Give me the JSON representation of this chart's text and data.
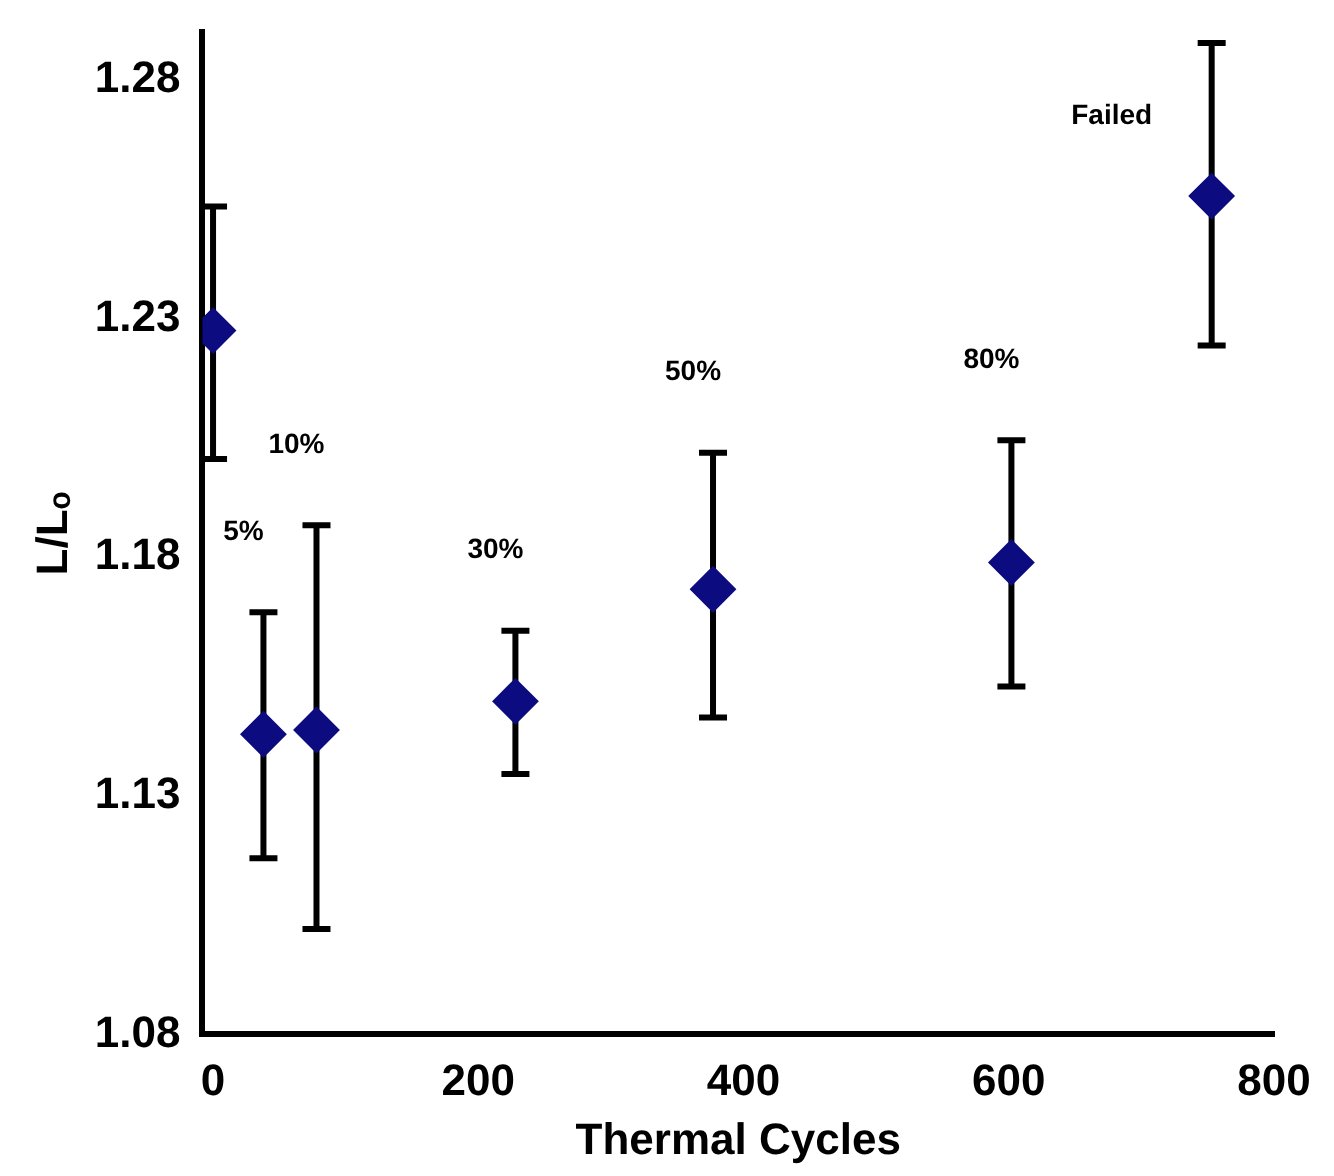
{
  "chart_data": {
    "type": "scatter",
    "xlabel": "Thermal Cycles",
    "ylabel": "L/Lₒ",
    "x": [
      0,
      38,
      78,
      228,
      377,
      602,
      753
    ],
    "series": [
      {
        "color": "#0c0c80",
        "values": [
          1.2275,
          1.1429,
          1.1438,
          1.1498,
          1.1733,
          1.1789,
          1.2557
        ],
        "errors": [
          [
            1.2006,
            1.2535
          ],
          [
            1.1169,
            1.1685
          ],
          [
            1.1021,
            1.1867
          ],
          [
            1.1346,
            1.1646
          ],
          [
            1.1464,
            1.2019
          ],
          [
            1.1529,
            1.2045
          ],
          [
            1.2244,
            1.2878
          ]
        ]
      }
    ],
    "xlim": [
      -8,
      800
    ],
    "xticks": [
      0,
      200,
      400,
      600,
      800
    ],
    "ylim": [
      1.08,
      1.29
    ],
    "yticks": [
      1.08,
      1.13,
      1.18,
      1.23,
      1.28
    ],
    "grid": false,
    "legend": false,
    "marker": "diamond",
    "annotations": [
      "5%",
      "10%",
      "30%",
      "50%",
      "80%",
      "Failed"
    ]
  }
}
